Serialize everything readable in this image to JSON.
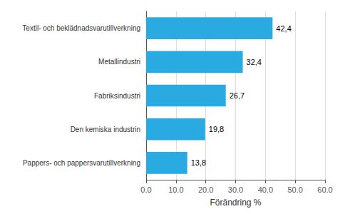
{
  "chart_data": {
    "type": "bar",
    "orientation": "horizontal",
    "categories": [
      "Pappers- och pappersvarutillverkning",
      "Den kemiska industrin",
      "Fabriksindustri",
      "Metallindustri",
      "Textil- och beklädnadsvarutillverkning"
    ],
    "values": [
      13.8,
      19.8,
      26.7,
      32.4,
      42.4
    ],
    "value_labels": [
      "13,8",
      "19,8",
      "26,7",
      "32,4",
      "42,4"
    ],
    "data_labels": true,
    "color": "#29abe2",
    "xlabel": "Förändring %",
    "xlim": [
      0,
      60
    ],
    "xticks": [
      {
        "value": 0,
        "label": "0.0"
      },
      {
        "value": 10,
        "label": "10.0"
      },
      {
        "value": 20,
        "label": "20.0"
      },
      {
        "value": 30,
        "label": "30.0"
      },
      {
        "value": 40,
        "label": "40.0"
      },
      {
        "value": 50,
        "label": "50.0"
      },
      {
        "value": 60,
        "label": "60.0"
      }
    ],
    "grid": true
  }
}
